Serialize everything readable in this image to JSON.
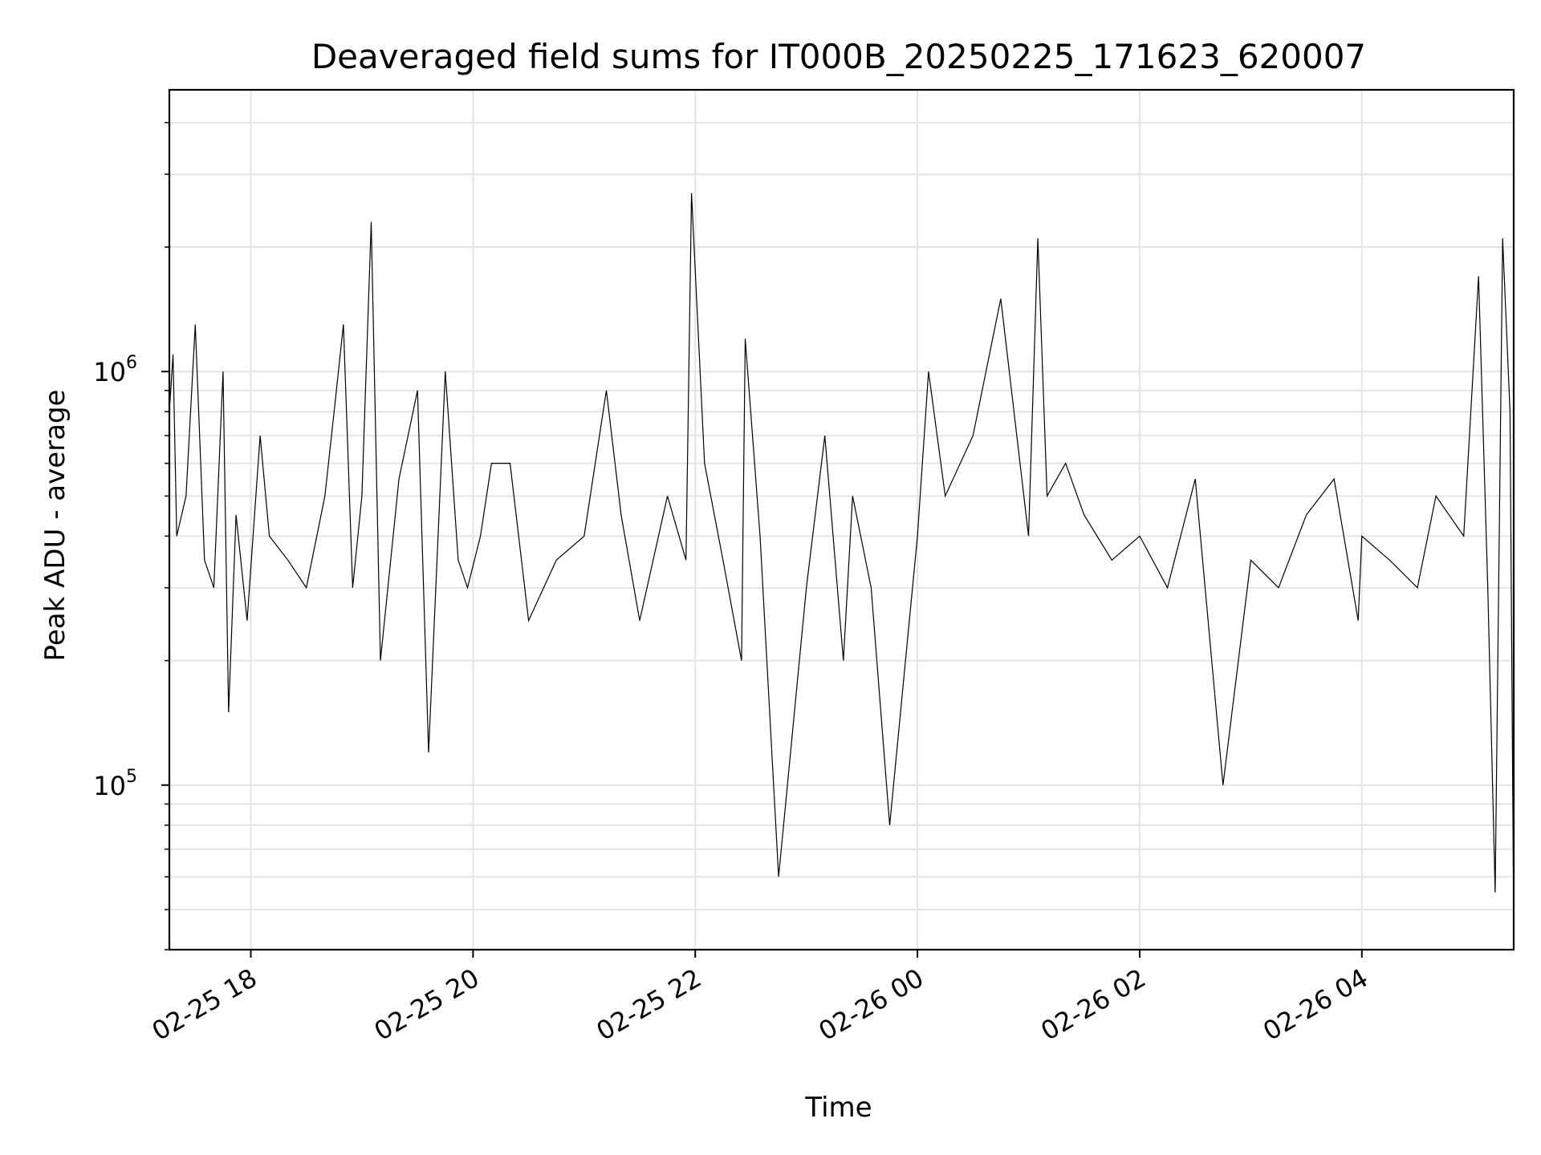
{
  "chart_data": {
    "type": "line",
    "title": "Deaveraged field sums for IT000B_20250225_171623_620007",
    "xlabel": "Time",
    "ylabel": "Peak ADU - average",
    "yscale": "log",
    "grid": true,
    "xlim": [
      "2025-02-25 17:16",
      "2025-02-26 05:22"
    ],
    "ylim": [
      40000,
      4800000
    ],
    "x_ticks": [
      {
        "value": "2025-02-25 18:00",
        "label": "02-25 18"
      },
      {
        "value": "2025-02-25 20:00",
        "label": "02-25 20"
      },
      {
        "value": "2025-02-25 22:00",
        "label": "02-25 22"
      },
      {
        "value": "2025-02-26 00:00",
        "label": "02-26 00"
      },
      {
        "value": "2025-02-26 02:00",
        "label": "02-26 02"
      },
      {
        "value": "2025-02-26 04:00",
        "label": "02-26 04"
      }
    ],
    "y_ticks": [
      {
        "value": 100000,
        "base": "10",
        "exp": "5"
      },
      {
        "value": 1000000,
        "base": "10",
        "exp": "6"
      }
    ],
    "series": [
      {
        "color": "#000000",
        "x": [
          "2025-02-25 17:16",
          "2025-02-25 17:18",
          "2025-02-25 17:20",
          "2025-02-25 17:25",
          "2025-02-25 17:30",
          "2025-02-25 17:35",
          "2025-02-25 17:40",
          "2025-02-25 17:45",
          "2025-02-25 17:48",
          "2025-02-25 17:52",
          "2025-02-25 17:58",
          "2025-02-25 18:05",
          "2025-02-25 18:10",
          "2025-02-25 18:20",
          "2025-02-25 18:30",
          "2025-02-25 18:40",
          "2025-02-25 18:45",
          "2025-02-25 18:50",
          "2025-02-25 18:55",
          "2025-02-25 19:00",
          "2025-02-25 19:05",
          "2025-02-25 19:10",
          "2025-02-25 19:20",
          "2025-02-25 19:30",
          "2025-02-25 19:36",
          "2025-02-25 19:45",
          "2025-02-25 19:52",
          "2025-02-25 19:57",
          "2025-02-25 20:04",
          "2025-02-25 20:10",
          "2025-02-25 20:20",
          "2025-02-25 20:30",
          "2025-02-25 20:45",
          "2025-02-25 21:00",
          "2025-02-25 21:12",
          "2025-02-25 21:20",
          "2025-02-25 21:30",
          "2025-02-25 21:45",
          "2025-02-25 21:55",
          "2025-02-25 21:58",
          "2025-02-25 22:05",
          "2025-02-25 22:15",
          "2025-02-25 22:25",
          "2025-02-25 22:27",
          "2025-02-25 22:35",
          "2025-02-25 22:45",
          "2025-02-25 23:00",
          "2025-02-25 23:10",
          "2025-02-25 23:20",
          "2025-02-25 23:25",
          "2025-02-25 23:35",
          "2025-02-25 23:45",
          "2025-02-26 00:00",
          "2025-02-26 00:06",
          "2025-02-26 00:15",
          "2025-02-26 00:30",
          "2025-02-26 00:45",
          "2025-02-26 01:00",
          "2025-02-26 01:05",
          "2025-02-26 01:10",
          "2025-02-26 01:20",
          "2025-02-26 01:30",
          "2025-02-26 01:45",
          "2025-02-26 02:00",
          "2025-02-26 02:15",
          "2025-02-26 02:30",
          "2025-02-26 02:45",
          "2025-02-26 03:00",
          "2025-02-26 03:15",
          "2025-02-26 03:30",
          "2025-02-26 03:45",
          "2025-02-26 03:58",
          "2025-02-26 04:00",
          "2025-02-26 04:15",
          "2025-02-26 04:30",
          "2025-02-26 04:40",
          "2025-02-26 04:55",
          "2025-02-26 05:03",
          "2025-02-26 05:08",
          "2025-02-26 05:12",
          "2025-02-26 05:16",
          "2025-02-26 05:20",
          "2025-02-26 05:22"
        ],
        "y": [
          800000,
          1100000,
          400000,
          500000,
          1300000,
          350000,
          300000,
          1000000,
          150000,
          450000,
          250000,
          700000,
          400000,
          350000,
          300000,
          500000,
          800000,
          1300000,
          300000,
          500000,
          2300000,
          200000,
          550000,
          900000,
          120000,
          1000000,
          350000,
          300000,
          400000,
          600000,
          600000,
          250000,
          350000,
          400000,
          900000,
          450000,
          250000,
          500000,
          350000,
          2700000,
          600000,
          350000,
          200000,
          1200000,
          400000,
          60000,
          300000,
          700000,
          200000,
          500000,
          300000,
          80000,
          400000,
          1000000,
          500000,
          700000,
          1500000,
          400000,
          2100000,
          500000,
          600000,
          450000,
          350000,
          400000,
          300000,
          550000,
          100000,
          350000,
          300000,
          450000,
          550000,
          250000,
          400000,
          350000,
          300000,
          500000,
          400000,
          1700000,
          300000,
          55000,
          2100000,
          800000,
          45000
        ]
      }
    ]
  }
}
